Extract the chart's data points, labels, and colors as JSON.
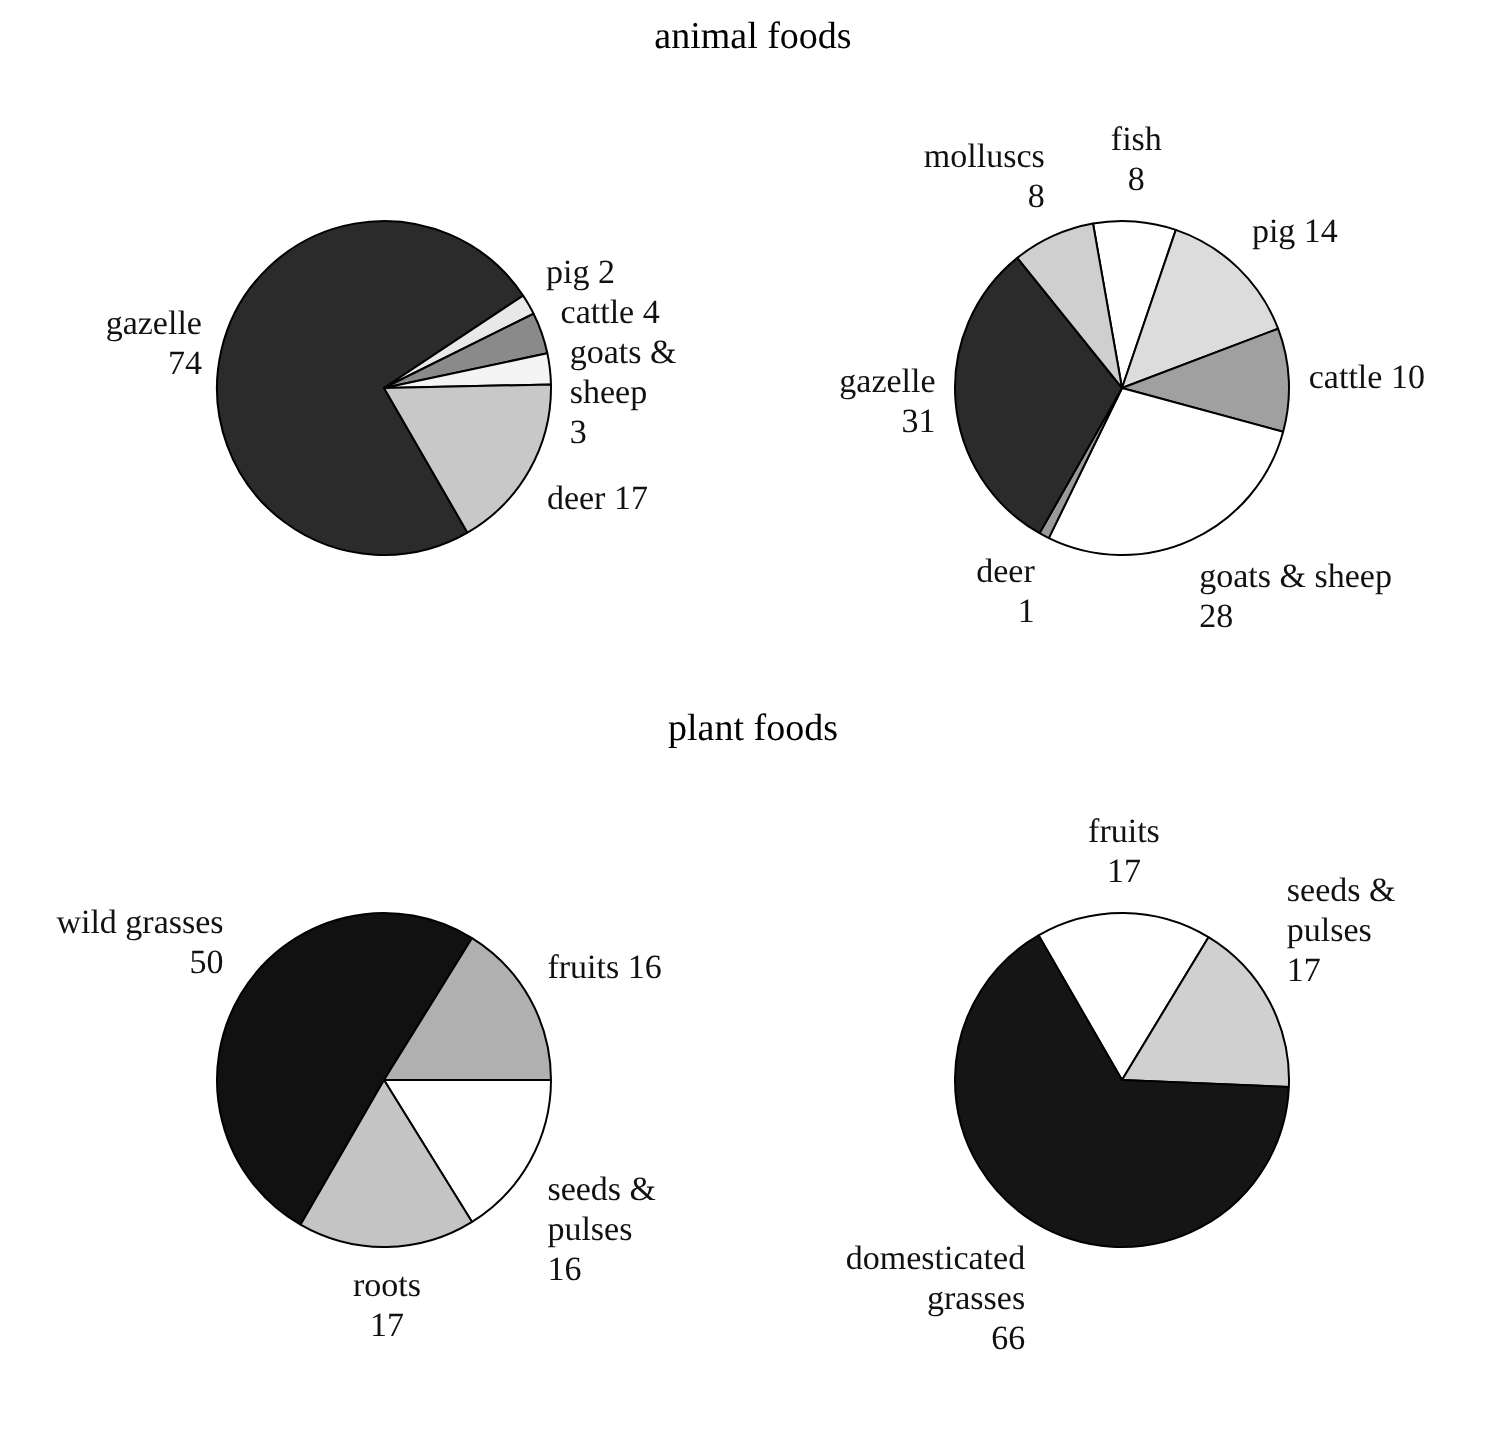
{
  "chart_data": [
    {
      "type": "pie",
      "title": "animal foods",
      "categories": [
        "gazelle",
        "pig",
        "cattle",
        "goats & sheep",
        "deer"
      ],
      "values": [
        74,
        2,
        4,
        3,
        17
      ],
      "colors": [
        "#2b2b2b",
        "#e8e8e8",
        "#8a8a8a",
        "#f4f4f4",
        "#c8c8c8"
      ],
      "data_labels": true,
      "legend": false
    },
    {
      "type": "pie",
      "categories": [
        "fish",
        "pig",
        "cattle",
        "goats & sheep",
        "deer",
        "gazelle",
        "molluscs"
      ],
      "values": [
        8,
        14,
        10,
        28,
        1,
        31,
        8
      ],
      "colors": [
        "#ffffff",
        "#dcdcdc",
        "#a0a0a0",
        "#ffffff",
        "#9a9a9a",
        "#2b2b2b",
        "#cfcfcf"
      ],
      "data_labels": true,
      "legend": false
    },
    {
      "type": "pie",
      "title": "plant foods",
      "categories": [
        "wild grasses",
        "fruits",
        "seeds & pulses",
        "roots"
      ],
      "values": [
        50,
        16,
        16,
        17
      ],
      "colors": [
        "#111111",
        "#b0b0b0",
        "#ffffff",
        "#c4c4c4"
      ],
      "data_labels": true,
      "legend": false
    },
    {
      "type": "pie",
      "categories": [
        "fruits",
        "seeds & pulses",
        "domesticated grasses"
      ],
      "values": [
        17,
        17,
        66
      ],
      "colors": [
        "#ffffff",
        "#d0d0d0",
        "#151515"
      ],
      "data_labels": true,
      "legend": false
    }
  ]
}
